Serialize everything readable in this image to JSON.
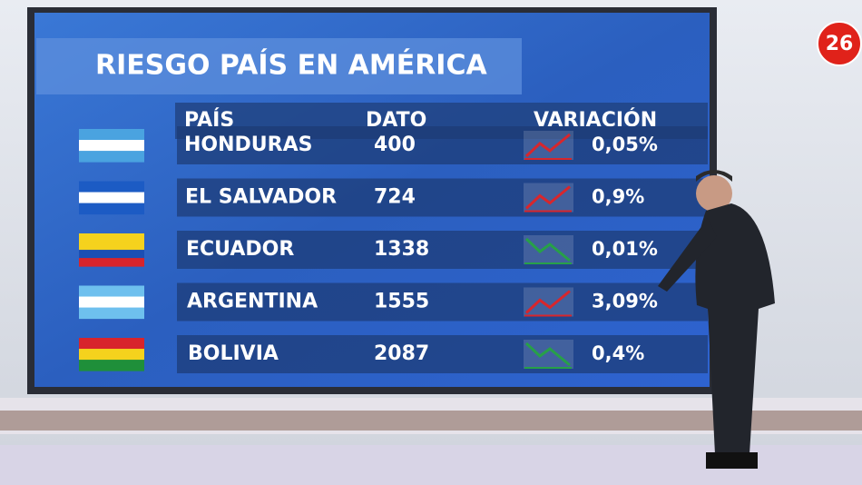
{
  "screen": {
    "title": "RIESGO PAÍS EN AMÉRICA",
    "table": {
      "headers": [
        "PAÍS",
        "DATO",
        "VARIACIÓN"
      ],
      "rows": [
        {
          "country": "HONDURAS",
          "value": 400,
          "change": "0,05%",
          "trend": "up"
        },
        {
          "country": "EL SALVADOR",
          "value": 724,
          "change": "0,9%",
          "trend": "up"
        },
        {
          "country": "ECUADOR",
          "value": 1338,
          "change": "0,01%",
          "trend": "down"
        },
        {
          "country": "ARGENTINA",
          "value": 1555,
          "change": "3,09%",
          "trend": "up"
        },
        {
          "country": "BOLIVIA",
          "value": 2087,
          "change": "0,4%",
          "trend": "down"
        }
      ]
    }
  },
  "channel_logo": "26"
}
